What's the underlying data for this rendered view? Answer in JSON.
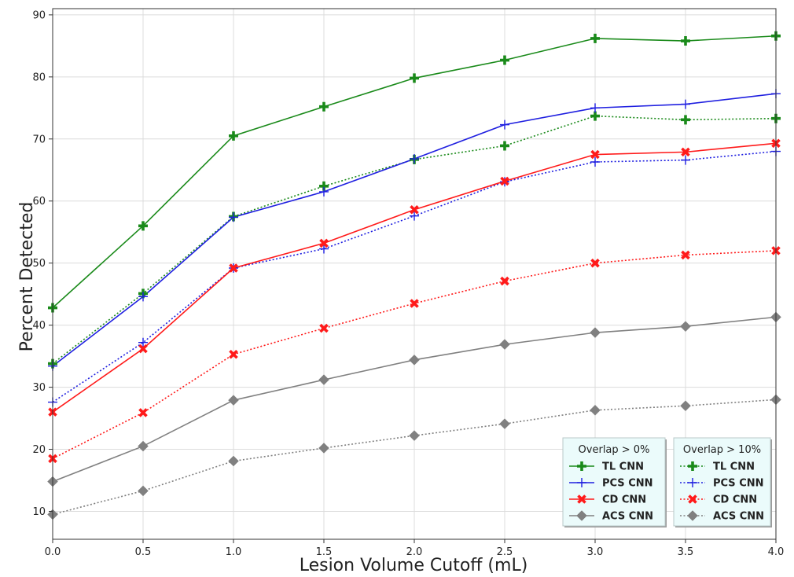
{
  "chart_data": {
    "type": "line",
    "xlabel": "Lesion Volume Cutoff (mL)",
    "ylabel": "Percent Detected",
    "xlim": [
      0,
      4
    ],
    "ylim": [
      5.5,
      91
    ],
    "xticks": [
      "0.0",
      "0.5",
      "1.0",
      "1.5",
      "2.0",
      "2.5",
      "3.0",
      "3.5",
      "4.0"
    ],
    "yticks": [
      "10",
      "20",
      "30",
      "40",
      "50",
      "60",
      "70",
      "80",
      "90"
    ],
    "grid": true,
    "x": [
      0.0,
      0.5,
      1.0,
      1.5,
      2.0,
      2.5,
      3.0,
      3.5,
      4.0
    ],
    "legend_position": "bottom-right",
    "legends": [
      {
        "title": "Overlap > 0%",
        "entries": [
          {
            "name": "TL CNN",
            "color": "#1a8a1a",
            "marker": "plus-thick",
            "style": "solid"
          },
          {
            "name": "PCS CNN",
            "color": "#1f1fe0",
            "marker": "plus-thin",
            "style": "solid"
          },
          {
            "name": "CD CNN",
            "color": "#ff1a1a",
            "marker": "x-thick",
            "style": "solid"
          },
          {
            "name": "ACS CNN",
            "color": "#808080",
            "marker": "diamond",
            "style": "solid"
          }
        ]
      },
      {
        "title": "Overlap > 10%",
        "entries": [
          {
            "name": "TL CNN",
            "color": "#1a8a1a",
            "marker": "plus-thick",
            "style": "dotted"
          },
          {
            "name": "PCS CNN",
            "color": "#1f1fe0",
            "marker": "plus-thin",
            "style": "dotted"
          },
          {
            "name": "CD CNN",
            "color": "#ff1a1a",
            "marker": "x-thick",
            "style": "dotted"
          },
          {
            "name": "ACS CNN",
            "color": "#808080",
            "marker": "diamond",
            "style": "dotted"
          }
        ]
      }
    ],
    "series": [
      {
        "name": "TL CNN",
        "overlap": "> 0%",
        "color": "#1a8a1a",
        "marker": "plus-thick",
        "style": "solid",
        "values": [
          42.8,
          56.0,
          70.5,
          75.2,
          79.8,
          82.7,
          86.2,
          85.8,
          86.6
        ]
      },
      {
        "name": "PCS CNN",
        "overlap": "> 0%",
        "color": "#1f1fe0",
        "marker": "plus-thin",
        "style": "solid",
        "values": [
          33.4,
          44.6,
          57.4,
          61.5,
          66.8,
          72.3,
          75.0,
          75.6,
          77.3
        ]
      },
      {
        "name": "CD CNN",
        "overlap": "> 0%",
        "color": "#ff1a1a",
        "marker": "x-thick",
        "style": "solid",
        "values": [
          26.0,
          36.2,
          49.2,
          53.2,
          58.6,
          63.2,
          67.5,
          67.9,
          69.3
        ]
      },
      {
        "name": "ACS CNN",
        "overlap": "> 0%",
        "color": "#808080",
        "marker": "diamond",
        "style": "solid",
        "values": [
          14.8,
          20.5,
          27.9,
          31.2,
          34.4,
          36.9,
          38.8,
          39.8,
          41.3
        ]
      },
      {
        "name": "TL CNN",
        "overlap": "> 10%",
        "color": "#1a8a1a",
        "marker": "plus-thick",
        "style": "dotted",
        "values": [
          33.8,
          45.1,
          57.5,
          62.4,
          66.7,
          68.9,
          73.7,
          73.1,
          73.3
        ]
      },
      {
        "name": "PCS CNN",
        "overlap": "> 10%",
        "color": "#1f1fe0",
        "marker": "plus-thin",
        "style": "dotted",
        "values": [
          27.6,
          37.2,
          49.2,
          52.3,
          57.6,
          63.1,
          66.3,
          66.6,
          68.0
        ]
      },
      {
        "name": "CD CNN",
        "overlap": "> 10%",
        "color": "#ff1a1a",
        "marker": "x-thick",
        "style": "dotted",
        "values": [
          18.5,
          25.9,
          35.3,
          39.5,
          43.5,
          47.1,
          50.0,
          51.3,
          52.0
        ]
      },
      {
        "name": "ACS CNN",
        "overlap": "> 10%",
        "color": "#808080",
        "marker": "diamond",
        "style": "dotted",
        "values": [
          9.5,
          13.3,
          18.1,
          20.2,
          22.2,
          24.1,
          26.3,
          27.0,
          28.0
        ]
      }
    ]
  }
}
